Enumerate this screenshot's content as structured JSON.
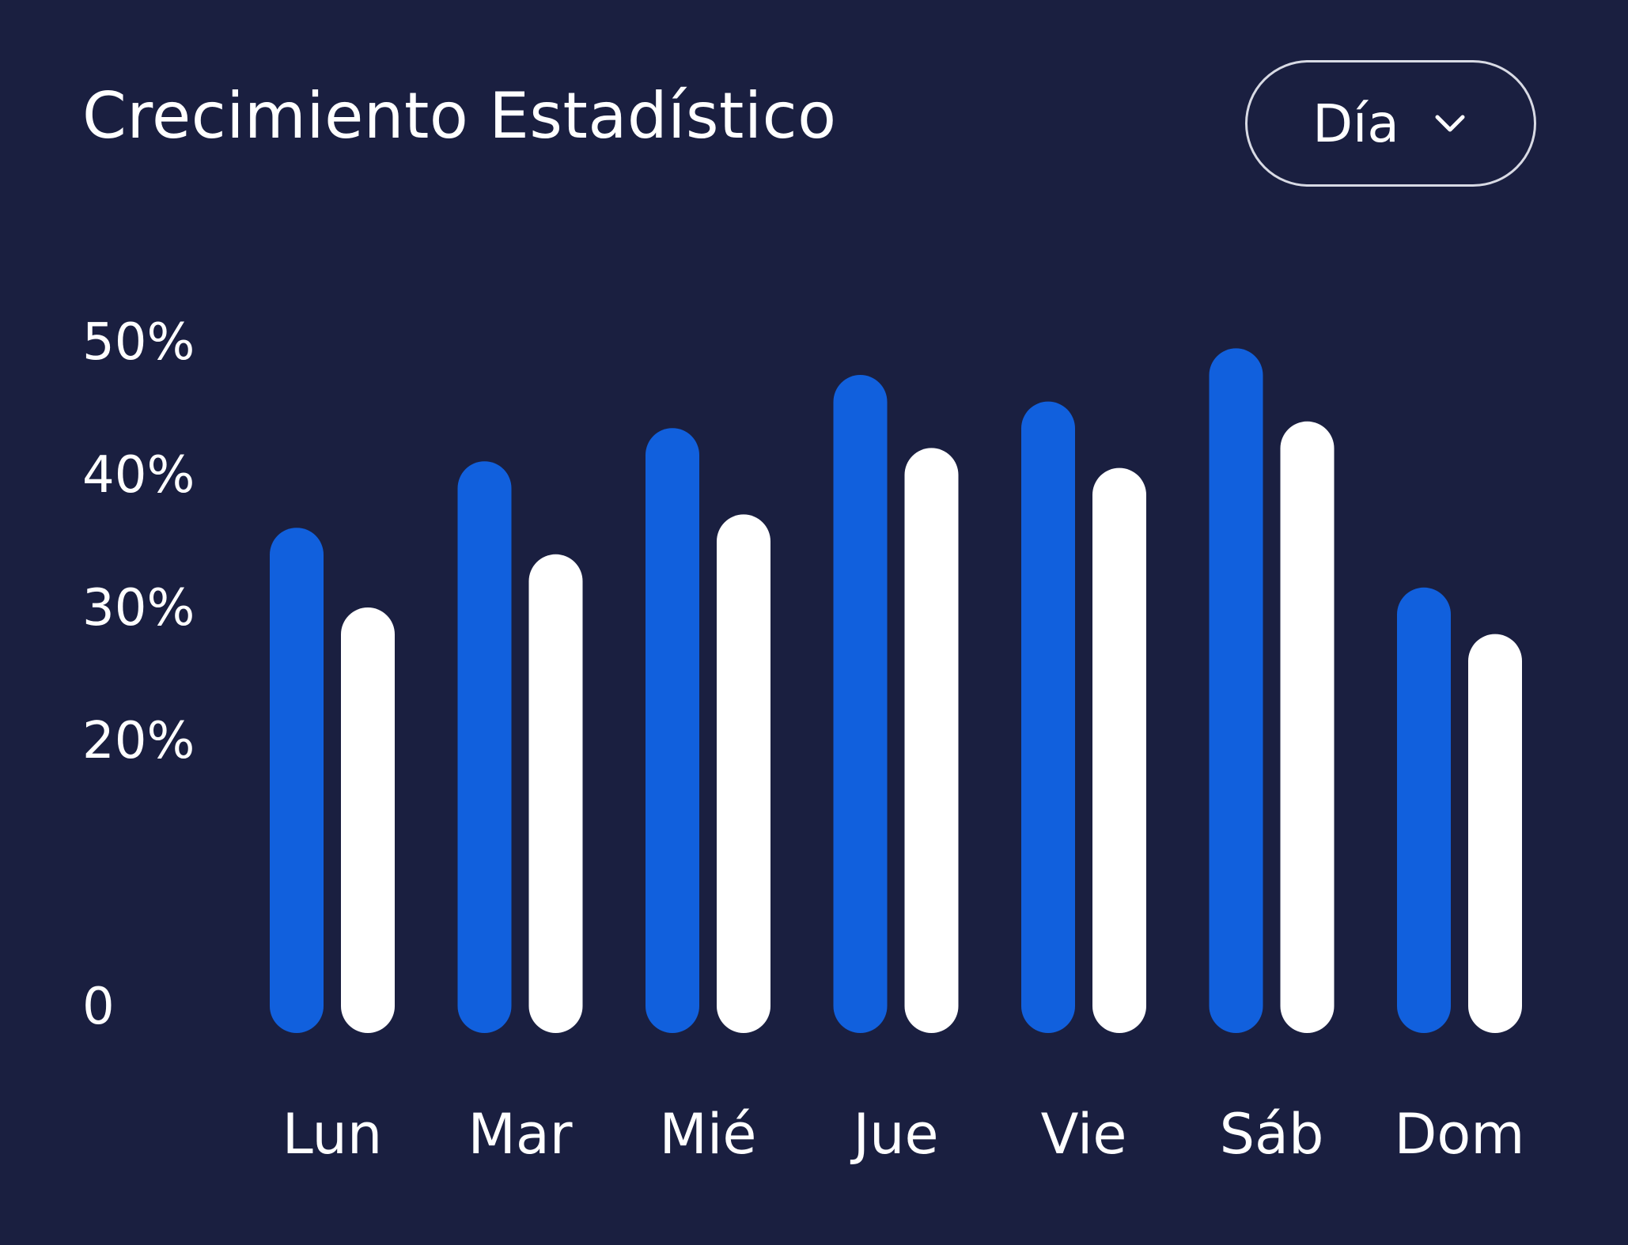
{
  "header": {
    "title": "Crecimiento Estadístico",
    "period": {
      "selected": "Día",
      "icon": "chevron-down-icon"
    }
  },
  "colors": {
    "background": "#1a1f40",
    "series_primary": "#1160dd",
    "series_secondary": "#ffffff"
  },
  "chart_data": {
    "type": "bar",
    "categories": [
      "Lun",
      "Mar",
      "Mié",
      "Jue",
      "Vie",
      "Sáb",
      "Dom"
    ],
    "series": [
      {
        "values": [
          36,
          41,
          43.5,
          47.5,
          45.5,
          49.5,
          31.5
        ]
      },
      {
        "values": [
          30,
          34,
          37,
          42,
          40.5,
          44,
          28
        ]
      }
    ],
    "y_ticks": [
      "0",
      "20%",
      "30%",
      "40%",
      "50%"
    ],
    "y_tick_values": [
      0,
      20,
      30,
      40,
      50
    ],
    "ylim": [
      0,
      50
    ],
    "grid": false,
    "legend": "none"
  }
}
